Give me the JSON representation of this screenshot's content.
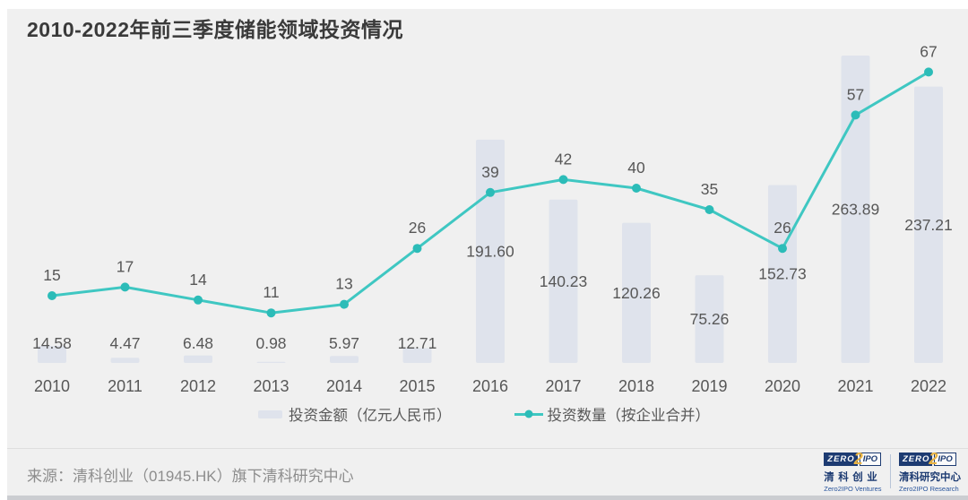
{
  "title": "2010-2022年前三季度储能领域投资情况",
  "chart_data": {
    "type": "combo",
    "categories": [
      "2010",
      "2011",
      "2012",
      "2013",
      "2014",
      "2015",
      "2016",
      "2017",
      "2018",
      "2019",
      "2020",
      "2021",
      "2022"
    ],
    "series": [
      {
        "name": "投资金额（亿元人民币）",
        "type": "bar",
        "values": [
          14.58,
          4.47,
          6.48,
          0.98,
          5.97,
          12.71,
          191.6,
          140.23,
          120.26,
          75.26,
          152.73,
          263.89,
          237.21
        ]
      },
      {
        "name": "投资数量（按企业合并）",
        "type": "line",
        "values": [
          15,
          17,
          14,
          11,
          13,
          26,
          39,
          42,
          40,
          35,
          26,
          57,
          67
        ]
      }
    ],
    "value_labels": true,
    "axes_hidden": true,
    "grid": false,
    "legend_position": "bottom"
  },
  "legend": {
    "bar_label": "投资金额（亿元人民币）",
    "line_label": "投资数量（按企业合并）"
  },
  "footer": {
    "source": "来源：清科创业（01945.HK）旗下清科研究中心"
  },
  "logo_badge": {
    "zero": "ZERO",
    "two": "2",
    "ipo": "IPO"
  },
  "logos": [
    {
      "cn": "清科创业",
      "en": "Zero2IPO Ventures"
    },
    {
      "cn": "清科研究中心",
      "en": "Zero2IPO Research"
    }
  ],
  "colors": {
    "panel_bg": "#f0f0f0",
    "bar": "#dfe3ec",
    "line": "#3fc7c2",
    "marker": "#2cbcb8",
    "label": "#575757",
    "navy": "#1d3b72",
    "orange": "#e9b343"
  }
}
